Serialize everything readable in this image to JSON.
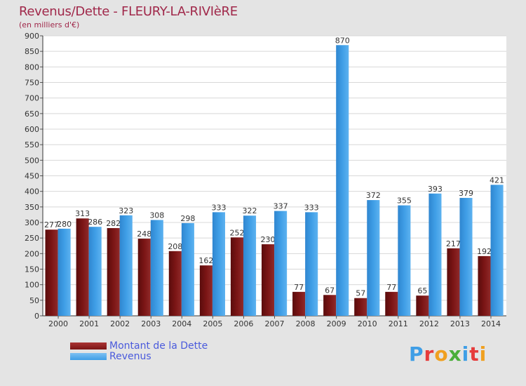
{
  "header": {
    "title": "Revenus/Dette - FLEURY-LA-RIVIèRE",
    "subtitle": "(en milliers d'€)"
  },
  "colors": {
    "background": "#e4e4e4",
    "plot_background": "#ffffff",
    "grid": "#d8d8d8",
    "title": "#a0284a",
    "legend_text": "#4a5adc",
    "series_dette": "#7b1515",
    "series_revenus": "#3f9ee6"
  },
  "legend": {
    "items": [
      {
        "label": "Montant de la Dette",
        "color": "#7b1515"
      },
      {
        "label": "Revenus",
        "color": "#3f9ee6"
      }
    ]
  },
  "logo": {
    "text": "Proxiti",
    "letter_colors": [
      "#3f9ee6",
      "#e63c3c",
      "#f0a020",
      "#4aae3a",
      "#3f9ee6",
      "#e63c3c",
      "#f0a020"
    ]
  },
  "chart_data": {
    "type": "bar",
    "title": "Revenus/Dette - FLEURY-LA-RIVIèRE",
    "subtitle": "(en milliers d'€)",
    "xlabel": "",
    "ylabel": "",
    "categories": [
      "2000",
      "2001",
      "2002",
      "2003",
      "2004",
      "2005",
      "2006",
      "2007",
      "2008",
      "2009",
      "2010",
      "2011",
      "2012",
      "2013",
      "2014"
    ],
    "series": [
      {
        "name": "Montant de la Dette",
        "values": [
          277,
          313,
          282,
          248,
          208,
          162,
          252,
          230,
          77,
          67,
          57,
          77,
          65,
          217,
          192
        ]
      },
      {
        "name": "Revenus",
        "values": [
          280,
          286,
          323,
          308,
          298,
          333,
          322,
          337,
          333,
          870,
          372,
          355,
          393,
          379,
          421
        ]
      }
    ],
    "ylim": [
      0,
      900
    ],
    "yticks": [
      0,
      50,
      100,
      150,
      200,
      250,
      300,
      350,
      400,
      450,
      500,
      550,
      600,
      650,
      700,
      750,
      800,
      850,
      900
    ],
    "grid": true,
    "legend_position": "bottom-left"
  }
}
